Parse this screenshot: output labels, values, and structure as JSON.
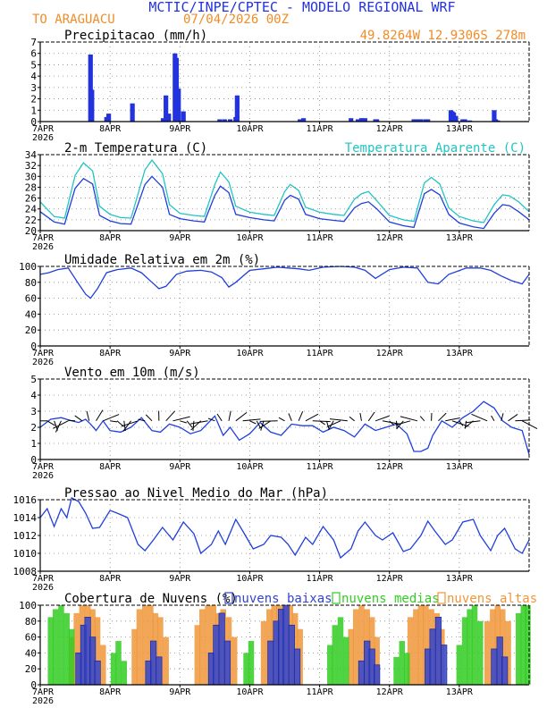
{
  "header": {
    "title": "MCTIC/INPE/CPTEC - MODELO REGIONAL WRF",
    "station": "TO ARAGUACU",
    "run": "07/04/2026 00Z",
    "coords": "49.8264W  12.9306S  278m"
  },
  "colors": {
    "title": "#2233dd",
    "accent": "#f08c28",
    "teal": "#22c4c4",
    "line": "#1f3fdc",
    "low": "#3344cc",
    "mid": "#33cc22",
    "high": "#f0963a"
  },
  "xaxis": {
    "ticks": [
      "7APR",
      "8APR",
      "9APR",
      "10APR",
      "11APR",
      "12APR",
      "13APR"
    ],
    "year": "2026"
  },
  "chart_data": [
    {
      "type": "bar",
      "title": "Precipitacao (mm/h)",
      "ylim": [
        0,
        7
      ],
      "yticks": [
        "0",
        "1",
        "2",
        "3",
        "4",
        "5",
        "6",
        "7"
      ],
      "x_day": [
        0.72,
        0.74,
        0.95,
        0.98,
        1.32,
        1.76,
        1.8,
        1.84,
        1.93,
        1.95,
        1.98,
        2.05,
        2.57,
        2.64,
        2.72,
        2.8,
        2.82,
        3.72,
        3.77,
        4.45,
        4.55,
        4.6,
        4.65,
        4.8,
        4.82,
        5.35,
        5.37,
        5.42,
        5.45,
        5.52,
        5.55,
        5.88,
        5.9,
        5.92,
        5.95,
        6.05,
        6.08,
        6.15,
        6.5,
        6.52,
        6.55
      ],
      "values": [
        5.9,
        2.8,
        0.4,
        0.7,
        1.6,
        0.3,
        2.3,
        0.7,
        6.0,
        5.6,
        2.9,
        0.9,
        0.2,
        0.2,
        0.2,
        0.4,
        2.3,
        0.2,
        0.3,
        0.3,
        0.2,
        0.3,
        0.3,
        0.2,
        0.2,
        0.2,
        0.2,
        0.2,
        0.2,
        0.2,
        0.2,
        1.0,
        0.9,
        0.8,
        0.5,
        0.2,
        0.2,
        0.1,
        1.0,
        0.2,
        0.1
      ]
    },
    {
      "type": "line",
      "title": "2-m Temperatura (C)",
      "legend": "Temperatura Aparente (C)",
      "ylim": [
        20,
        34
      ],
      "yticks": [
        "20",
        "22",
        "24",
        "26",
        "28",
        "30",
        "32",
        "34"
      ],
      "series": [
        {
          "name": "Temperatura",
          "x_day": [
            0,
            0.2,
            0.35,
            0.5,
            0.62,
            0.75,
            0.85,
            1.0,
            1.15,
            1.3,
            1.5,
            1.6,
            1.75,
            1.85,
            2.0,
            2.2,
            2.35,
            2.5,
            2.58,
            2.7,
            2.8,
            3.0,
            3.2,
            3.35,
            3.5,
            3.58,
            3.7,
            3.8,
            4.0,
            4.2,
            4.35,
            4.5,
            4.6,
            4.7,
            4.82,
            5.0,
            5.2,
            5.35,
            5.5,
            5.6,
            5.72,
            5.85,
            6.0,
            6.2,
            6.35,
            6.5,
            6.62,
            6.72,
            6.85,
            7.0
          ],
          "values": [
            23.5,
            21.6,
            21.2,
            27.8,
            29.6,
            28.6,
            22.8,
            21.8,
            21.3,
            21.2,
            28.5,
            30.0,
            28.0,
            23.0,
            22.2,
            21.8,
            21.6,
            26.5,
            28.2,
            27.0,
            23.0,
            22.4,
            22.0,
            21.8,
            25.6,
            26.5,
            25.8,
            23.0,
            22.2,
            21.9,
            21.7,
            24.2,
            25.0,
            25.3,
            24.0,
            21.6,
            20.9,
            20.6,
            26.8,
            27.6,
            26.6,
            23.0,
            21.4,
            20.7,
            20.4,
            23.2,
            24.8,
            24.6,
            23.5,
            22.0
          ]
        },
        {
          "name": "Temperatura Aparente",
          "x_day": [
            0,
            0.2,
            0.35,
            0.5,
            0.62,
            0.75,
            0.85,
            1.0,
            1.15,
            1.3,
            1.5,
            1.6,
            1.75,
            1.85,
            2.0,
            2.2,
            2.35,
            2.5,
            2.58,
            2.7,
            2.8,
            3.0,
            3.2,
            3.35,
            3.5,
            3.58,
            3.7,
            3.8,
            4.0,
            4.2,
            4.35,
            4.5,
            4.6,
            4.7,
            4.82,
            5.0,
            5.2,
            5.35,
            5.5,
            5.6,
            5.72,
            5.85,
            6.0,
            6.2,
            6.35,
            6.5,
            6.62,
            6.72,
            6.85,
            7.0
          ],
          "values": [
            25.3,
            22.6,
            22.3,
            30.2,
            32.5,
            31.0,
            24.5,
            23.0,
            22.4,
            22.3,
            31.2,
            33.0,
            30.5,
            24.8,
            23.2,
            22.8,
            22.6,
            28.5,
            30.8,
            29.0,
            24.5,
            23.4,
            23.0,
            22.8,
            27.2,
            28.5,
            27.4,
            24.3,
            23.4,
            23.0,
            22.8,
            25.8,
            26.8,
            27.2,
            25.5,
            22.8,
            22.0,
            21.7,
            28.8,
            29.8,
            28.6,
            24.2,
            22.6,
            21.8,
            21.5,
            24.8,
            26.6,
            26.4,
            25.3,
            23.5
          ]
        }
      ]
    },
    {
      "type": "line",
      "title": "Umidade Relativa em 2m (%)",
      "ylim": [
        0,
        100
      ],
      "yticks": [
        "0",
        "20",
        "40",
        "60",
        "80",
        "100"
      ],
      "x_day": [
        0,
        0.12,
        0.25,
        0.4,
        0.55,
        0.65,
        0.72,
        0.82,
        0.95,
        1.1,
        1.3,
        1.45,
        1.6,
        1.7,
        1.8,
        1.95,
        2.1,
        2.3,
        2.45,
        2.6,
        2.7,
        2.8,
        3.0,
        3.2,
        3.4,
        3.55,
        3.7,
        3.85,
        4.05,
        4.3,
        4.5,
        4.65,
        4.8,
        5.0,
        5.2,
        5.4,
        5.55,
        5.7,
        5.85,
        6.1,
        6.3,
        6.45,
        6.6,
        6.75,
        6.9,
        7.0
      ],
      "values": [
        90,
        92,
        96,
        98,
        78,
        65,
        60,
        72,
        92,
        96,
        98,
        92,
        80,
        72,
        75,
        90,
        94,
        95,
        93,
        86,
        74,
        80,
        95,
        97,
        99,
        98,
        97,
        95,
        99,
        100,
        99,
        95,
        85,
        96,
        99,
        98,
        80,
        78,
        90,
        98,
        98,
        95,
        88,
        82,
        78,
        90
      ]
    },
    {
      "type": "line",
      "title": "Vento em 10m (m/s)",
      "ylim": [
        0,
        5
      ],
      "yticks": [
        "0",
        "1",
        "2",
        "3",
        "4",
        "5"
      ],
      "x_day": [
        0,
        0.15,
        0.3,
        0.45,
        0.55,
        0.65,
        0.72,
        0.8,
        0.9,
        1.0,
        1.15,
        1.3,
        1.45,
        1.6,
        1.72,
        1.85,
        2.0,
        2.15,
        2.3,
        2.5,
        2.62,
        2.72,
        2.85,
        3.0,
        3.15,
        3.3,
        3.45,
        3.6,
        3.75,
        3.9,
        4.05,
        4.2,
        4.35,
        4.5,
        4.65,
        4.8,
        4.95,
        5.1,
        5.25,
        5.35,
        5.45,
        5.55,
        5.62,
        5.75,
        5.9,
        6.05,
        6.2,
        6.35,
        6.5,
        6.62,
        6.75,
        6.9,
        7.0
      ],
      "values": [
        2.0,
        2.5,
        2.6,
        2.4,
        2.3,
        2.5,
        2.2,
        1.8,
        2.4,
        1.8,
        1.7,
        2.0,
        2.6,
        1.8,
        1.7,
        2.2,
        2.0,
        1.6,
        1.8,
        2.7,
        1.5,
        2.0,
        1.2,
        1.6,
        2.3,
        1.7,
        1.5,
        2.2,
        2.1,
        2.1,
        1.7,
        2.0,
        1.8,
        1.4,
        2.2,
        1.8,
        2.0,
        2.2,
        1.6,
        0.5,
        0.5,
        0.7,
        1.5,
        2.4,
        2.0,
        2.6,
        3.0,
        3.6,
        3.2,
        2.4,
        2.0,
        1.8,
        0.3
      ]
    },
    {
      "type": "line",
      "title": "Pressao ao Nivel Medio do Mar (hPa)",
      "ylim": [
        1008,
        1016
      ],
      "yticks": [
        "1008",
        "1010",
        "1012",
        "1014",
        "1016"
      ],
      "x_day": [
        0,
        0.1,
        0.2,
        0.3,
        0.38,
        0.45,
        0.55,
        0.65,
        0.75,
        0.85,
        1.0,
        1.1,
        1.25,
        1.4,
        1.5,
        1.62,
        1.75,
        1.9,
        2.05,
        2.2,
        2.3,
        2.45,
        2.55,
        2.65,
        2.8,
        2.9,
        3.05,
        3.2,
        3.3,
        3.45,
        3.55,
        3.65,
        3.8,
        3.9,
        4.05,
        4.2,
        4.3,
        4.45,
        4.55,
        4.65,
        4.8,
        4.9,
        5.05,
        5.2,
        5.3,
        5.45,
        5.55,
        5.65,
        5.8,
        5.9,
        6.05,
        6.2,
        6.3,
        6.45,
        6.55,
        6.65,
        6.8,
        6.9,
        7.0
      ],
      "values": [
        1014.0,
        1015.0,
        1013.0,
        1015.0,
        1014.0,
        1016.2,
        1015.8,
        1014.5,
        1012.8,
        1012.9,
        1014.8,
        1014.5,
        1014.0,
        1011.0,
        1010.3,
        1011.5,
        1012.9,
        1011.5,
        1013.5,
        1012.2,
        1010.0,
        1011.0,
        1012.5,
        1011.0,
        1013.8,
        1012.5,
        1010.5,
        1011.0,
        1012.0,
        1011.8,
        1011.0,
        1009.8,
        1011.8,
        1011.0,
        1013.0,
        1011.5,
        1009.5,
        1010.5,
        1012.5,
        1013.5,
        1012.0,
        1011.5,
        1012.3,
        1010.2,
        1010.5,
        1012.0,
        1013.6,
        1012.5,
        1011.0,
        1011.5,
        1013.5,
        1013.8,
        1012.0,
        1010.3,
        1012.0,
        1012.8,
        1010.5,
        1010.0,
        1011.5
      ]
    },
    {
      "type": "bar",
      "title": "Cobertura de Nuvens (%)",
      "ylim": [
        0,
        100
      ],
      "yticks": [
        "0",
        "20",
        "40",
        "60",
        "80",
        "100"
      ],
      "series": [
        {
          "name": "nuvens baixas",
          "x_day": [
            0.55,
            0.62,
            0.68,
            0.75,
            0.82,
            1.55,
            1.62,
            1.7,
            2.45,
            2.52,
            2.6,
            2.68,
            3.3,
            3.38,
            3.45,
            3.52,
            3.6,
            3.68,
            4.6,
            4.68,
            4.75,
            4.82,
            5.55,
            5.62,
            5.7,
            5.78,
            6.5,
            6.58,
            6.65
          ],
          "values": [
            40,
            75,
            85,
            60,
            30,
            30,
            55,
            35,
            40,
            75,
            90,
            55,
            55,
            80,
            95,
            100,
            75,
            45,
            30,
            55,
            45,
            25,
            45,
            70,
            85,
            50,
            45,
            60,
            35
          ]
        },
        {
          "name": "nuvens medias",
          "x_day": [
            0.15,
            0.22,
            0.3,
            0.38,
            0.45,
            1.05,
            1.12,
            1.2,
            2.95,
            3.02,
            4.15,
            4.22,
            4.3,
            4.38,
            5.1,
            5.18,
            5.25,
            6.0,
            6.08,
            6.15,
            6.22,
            6.3,
            6.85,
            6.92,
            6.98
          ],
          "values": [
            85,
            95,
            100,
            90,
            70,
            40,
            55,
            30,
            40,
            55,
            50,
            75,
            85,
            60,
            35,
            55,
            40,
            50,
            85,
            95,
            100,
            80,
            90,
            100,
            100
          ]
        },
        {
          "name": "nuvens altas",
          "x_day": [
            0.45,
            0.52,
            0.6,
            0.68,
            0.75,
            0.82,
            0.9,
            1.35,
            1.42,
            1.5,
            1.58,
            1.65,
            1.72,
            1.8,
            2.25,
            2.32,
            2.4,
            2.48,
            2.55,
            2.62,
            2.7,
            2.78,
            3.2,
            3.28,
            3.35,
            3.42,
            3.5,
            3.58,
            3.65,
            3.72,
            4.45,
            4.52,
            4.6,
            4.68,
            4.75,
            4.82,
            5.3,
            5.38,
            5.45,
            5.52,
            5.6,
            5.68,
            5.75,
            6.4,
            6.48,
            6.55,
            6.62,
            6.7
          ],
          "values": [
            60,
            90,
            100,
            100,
            95,
            85,
            50,
            70,
            95,
            100,
            100,
            90,
            85,
            60,
            75,
            95,
            100,
            100,
            90,
            95,
            85,
            60,
            80,
            95,
            100,
            100,
            100,
            100,
            90,
            70,
            70,
            95,
            100,
            95,
            85,
            60,
            85,
            95,
            100,
            100,
            95,
            90,
            70,
            80,
            95,
            100,
            95,
            80
          ]
        }
      ]
    }
  ]
}
